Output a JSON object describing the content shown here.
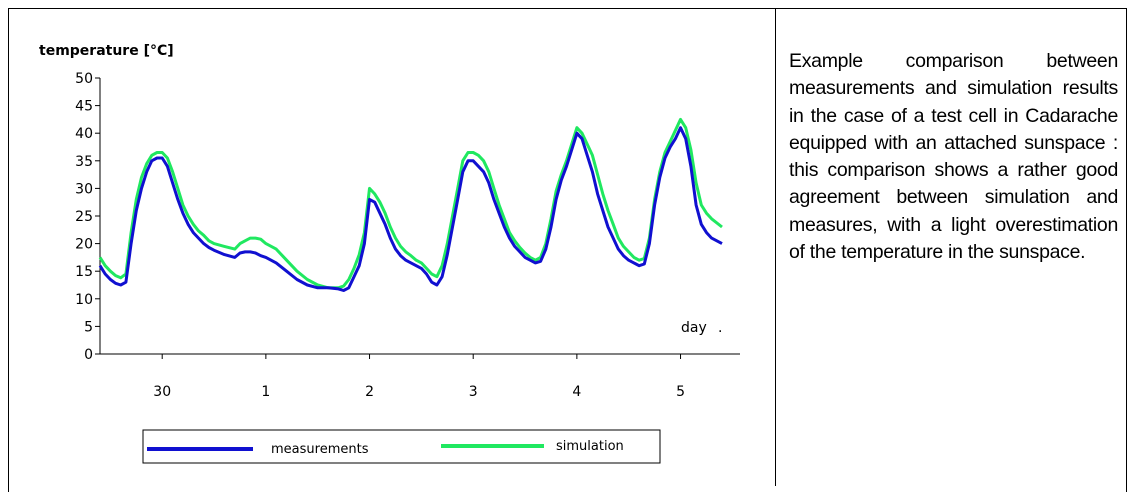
{
  "chart_data": {
    "type": "line",
    "title": "",
    "ylabel": "temperature [°C]",
    "xlabel": "day",
    "ylim": [
      0,
      50
    ],
    "yticks": [
      0,
      5,
      10,
      15,
      20,
      25,
      30,
      35,
      40,
      45,
      50
    ],
    "xlim": [
      29.4,
      5.4
    ],
    "x_tick_labels": [
      "30",
      "1",
      "2",
      "3",
      "4",
      "5"
    ],
    "x_tick_positions": [
      30,
      1,
      2,
      3,
      4,
      5
    ],
    "grid": false,
    "legend": "bottom",
    "series": [
      {
        "name": "measurements",
        "color": "#1010d0",
        "points": [
          [
            29.4,
            16
          ],
          [
            29.45,
            14.5
          ],
          [
            29.5,
            13.5
          ],
          [
            29.55,
            12.8
          ],
          [
            29.6,
            12.5
          ],
          [
            29.65,
            13
          ],
          [
            29.7,
            20
          ],
          [
            29.75,
            26
          ],
          [
            29.8,
            30
          ],
          [
            29.85,
            33
          ],
          [
            29.9,
            35
          ],
          [
            29.95,
            35.5
          ],
          [
            30.0,
            35.5
          ],
          [
            30.05,
            34
          ],
          [
            30.1,
            31
          ],
          [
            30.15,
            28
          ],
          [
            30.2,
            25.5
          ],
          [
            30.25,
            23.5
          ],
          [
            30.3,
            22
          ],
          [
            30.35,
            21
          ],
          [
            30.4,
            20
          ],
          [
            30.45,
            19.3
          ],
          [
            30.5,
            18.8
          ],
          [
            30.6,
            18
          ],
          [
            30.7,
            17.5
          ],
          [
            30.75,
            18.3
          ],
          [
            30.8,
            18.5
          ],
          [
            30.85,
            18.5
          ],
          [
            30.9,
            18.3
          ],
          [
            30.95,
            17.8
          ],
          [
            31.0,
            17.5
          ],
          [
            31.1,
            16.5
          ],
          [
            31.2,
            15
          ],
          [
            31.3,
            13.5
          ],
          [
            31.4,
            12.5
          ],
          [
            31.5,
            12
          ],
          [
            31.6,
            12
          ],
          [
            31.7,
            11.8
          ],
          [
            31.75,
            11.5
          ],
          [
            31.8,
            12
          ],
          [
            31.85,
            14
          ],
          [
            31.9,
            16
          ],
          [
            31.95,
            20
          ],
          [
            32.0,
            28
          ],
          [
            32.05,
            27.5
          ],
          [
            32.1,
            25.5
          ],
          [
            32.15,
            23.5
          ],
          [
            32.2,
            21
          ],
          [
            32.25,
            19
          ],
          [
            32.3,
            17.8
          ],
          [
            32.35,
            17
          ],
          [
            32.4,
            16.5
          ],
          [
            32.45,
            16
          ],
          [
            32.5,
            15.5
          ],
          [
            32.55,
            14.5
          ],
          [
            32.6,
            13
          ],
          [
            32.65,
            12.5
          ],
          [
            32.7,
            14
          ],
          [
            32.75,
            18
          ],
          [
            32.8,
            23
          ],
          [
            32.85,
            28
          ],
          [
            32.9,
            33
          ],
          [
            32.95,
            35
          ],
          [
            33.0,
            35
          ],
          [
            33.05,
            34
          ],
          [
            33.1,
            33
          ],
          [
            33.15,
            31
          ],
          [
            33.2,
            28
          ],
          [
            33.25,
            25.5
          ],
          [
            33.3,
            23
          ],
          [
            33.35,
            21
          ],
          [
            33.4,
            19.5
          ],
          [
            33.45,
            18.5
          ],
          [
            33.5,
            17.5
          ],
          [
            33.55,
            17
          ],
          [
            33.6,
            16.5
          ],
          [
            33.65,
            16.8
          ],
          [
            33.7,
            19
          ],
          [
            33.75,
            23
          ],
          [
            33.8,
            28
          ],
          [
            33.85,
            31.5
          ],
          [
            33.9,
            34
          ],
          [
            33.95,
            37
          ],
          [
            34.0,
            40
          ],
          [
            34.05,
            39
          ],
          [
            34.1,
            36
          ],
          [
            34.15,
            33
          ],
          [
            34.2,
            29
          ],
          [
            34.25,
            26
          ],
          [
            34.3,
            23
          ],
          [
            34.35,
            21
          ],
          [
            34.4,
            19
          ],
          [
            34.45,
            17.8
          ],
          [
            34.5,
            17
          ],
          [
            34.55,
            16.5
          ],
          [
            34.6,
            16
          ],
          [
            34.65,
            16.3
          ],
          [
            34.7,
            20
          ],
          [
            34.75,
            27
          ],
          [
            34.8,
            32
          ],
          [
            34.85,
            35.5
          ],
          [
            34.9,
            37.5
          ],
          [
            34.95,
            39
          ],
          [
            35.0,
            41
          ],
          [
            35.05,
            39
          ],
          [
            35.1,
            34
          ],
          [
            35.15,
            27
          ],
          [
            35.2,
            23.5
          ],
          [
            35.25,
            22
          ],
          [
            35.3,
            21
          ],
          [
            35.4,
            20
          ]
        ]
      },
      {
        "name": "simulation",
        "color": "#20e860",
        "points": [
          [
            29.4,
            17.5
          ],
          [
            29.45,
            16
          ],
          [
            29.5,
            15
          ],
          [
            29.55,
            14.2
          ],
          [
            29.6,
            13.8
          ],
          [
            29.65,
            14.5
          ],
          [
            29.7,
            22
          ],
          [
            29.75,
            28
          ],
          [
            29.8,
            32
          ],
          [
            29.85,
            34.5
          ],
          [
            29.9,
            36
          ],
          [
            29.95,
            36.5
          ],
          [
            30.0,
            36.5
          ],
          [
            30.05,
            35.5
          ],
          [
            30.1,
            33
          ],
          [
            30.15,
            30
          ],
          [
            30.2,
            27
          ],
          [
            30.25,
            25
          ],
          [
            30.3,
            23.5
          ],
          [
            30.35,
            22.3
          ],
          [
            30.4,
            21.5
          ],
          [
            30.45,
            20.5
          ],
          [
            30.5,
            20
          ],
          [
            30.6,
            19.5
          ],
          [
            30.7,
            19
          ],
          [
            30.75,
            20
          ],
          [
            30.8,
            20.5
          ],
          [
            30.85,
            21
          ],
          [
            30.9,
            21
          ],
          [
            30.95,
            20.8
          ],
          [
            31.0,
            20
          ],
          [
            31.1,
            19
          ],
          [
            31.2,
            17
          ],
          [
            31.3,
            15
          ],
          [
            31.4,
            13.5
          ],
          [
            31.5,
            12.5
          ],
          [
            31.6,
            12
          ],
          [
            31.7,
            12
          ],
          [
            31.75,
            12.3
          ],
          [
            31.8,
            13.5
          ],
          [
            31.85,
            15.5
          ],
          [
            31.9,
            18
          ],
          [
            31.95,
            22
          ],
          [
            32.0,
            30
          ],
          [
            32.05,
            29
          ],
          [
            32.1,
            27.5
          ],
          [
            32.15,
            25.5
          ],
          [
            32.2,
            23
          ],
          [
            32.25,
            21
          ],
          [
            32.3,
            19.5
          ],
          [
            32.35,
            18.5
          ],
          [
            32.4,
            17.8
          ],
          [
            32.45,
            17
          ],
          [
            32.5,
            16.5
          ],
          [
            32.55,
            15.5
          ],
          [
            32.6,
            14.5
          ],
          [
            32.65,
            14
          ],
          [
            32.7,
            16
          ],
          [
            32.75,
            20
          ],
          [
            32.8,
            25
          ],
          [
            32.85,
            30
          ],
          [
            32.9,
            35
          ],
          [
            32.95,
            36.5
          ],
          [
            33.0,
            36.5
          ],
          [
            33.05,
            36
          ],
          [
            33.1,
            35
          ],
          [
            33.15,
            33
          ],
          [
            33.2,
            30
          ],
          [
            33.25,
            27
          ],
          [
            33.3,
            24.5
          ],
          [
            33.35,
            22
          ],
          [
            33.4,
            20.5
          ],
          [
            33.45,
            19.3
          ],
          [
            33.5,
            18.3
          ],
          [
            33.55,
            17.5
          ],
          [
            33.6,
            17
          ],
          [
            33.65,
            17.5
          ],
          [
            33.7,
            20
          ],
          [
            33.75,
            24.5
          ],
          [
            33.8,
            29.5
          ],
          [
            33.85,
            32.5
          ],
          [
            33.9,
            35
          ],
          [
            33.95,
            38
          ],
          [
            34.0,
            41
          ],
          [
            34.05,
            40
          ],
          [
            34.1,
            38
          ],
          [
            34.15,
            36
          ],
          [
            34.2,
            32.5
          ],
          [
            34.25,
            29
          ],
          [
            34.3,
            26
          ],
          [
            34.35,
            23.5
          ],
          [
            34.4,
            21
          ],
          [
            34.45,
            19.5
          ],
          [
            34.5,
            18.5
          ],
          [
            34.55,
            17.5
          ],
          [
            34.6,
            17
          ],
          [
            34.65,
            17.3
          ],
          [
            34.7,
            21
          ],
          [
            34.75,
            28
          ],
          [
            34.8,
            33
          ],
          [
            34.85,
            36.5
          ],
          [
            34.9,
            38.5
          ],
          [
            34.95,
            40.5
          ],
          [
            35.0,
            42.5
          ],
          [
            35.05,
            41
          ],
          [
            35.1,
            37
          ],
          [
            35.15,
            31
          ],
          [
            35.2,
            27
          ],
          [
            35.25,
            25.5
          ],
          [
            35.3,
            24.5
          ],
          [
            35.4,
            23
          ]
        ]
      }
    ]
  },
  "caption": "Example comparison between measurements and simulation results in the case of a test cell in Cadarache equipped with an attached sunspace : this comparison shows a rather good agreement between simulation and measures, with a light overestimation of the temperature in the sunspace."
}
